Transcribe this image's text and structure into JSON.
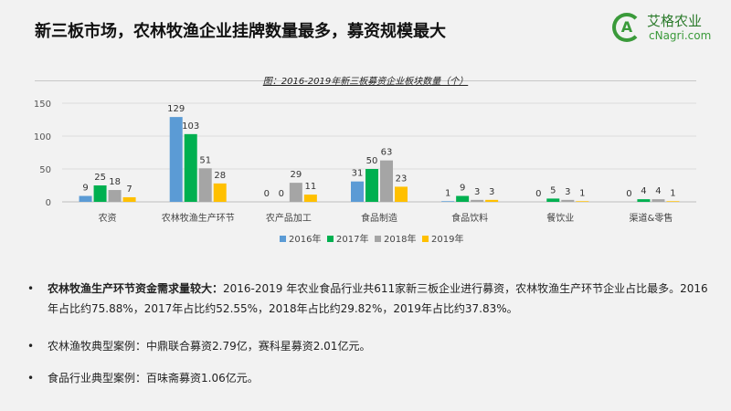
{
  "header": {
    "title": "新三板市场，农林牧渔企业挂牌数量最多，募资规模最大",
    "logo_cn": "艾格农业",
    "logo_en": "cNagri.com"
  },
  "chart_data": {
    "type": "bar",
    "title": "图：2016-2019年新三板募资企业板块数量（个）",
    "categories": [
      "农资",
      "农林牧渔生产环节",
      "农产品加工",
      "食品制造",
      "食品饮料",
      "餐饮业",
      "渠道&零售"
    ],
    "series": [
      {
        "name": "2016年",
        "color": "#5b9bd5",
        "values": [
          9,
          129,
          0,
          31,
          1,
          0,
          0
        ]
      },
      {
        "name": "2017年",
        "color": "#00b050",
        "values": [
          25,
          103,
          0,
          50,
          9,
          5,
          4
        ]
      },
      {
        "name": "2018年",
        "color": "#a5a5a5",
        "values": [
          18,
          51,
          29,
          63,
          3,
          3,
          4
        ]
      },
      {
        "name": "2019年",
        "color": "#ffc000",
        "values": [
          7,
          28,
          11,
          23,
          3,
          1,
          1
        ]
      }
    ],
    "yticks": [
      "0",
      "50",
      "100",
      "150"
    ],
    "ylim": [
      0,
      150
    ],
    "legend": "bottom"
  },
  "bullets": [
    {
      "bold": "农林牧渔生产环节资金需求量较大：",
      "text": "2016-2019 年农业食品行业共611家新三板企业进行募资，农林牧渔生产环节企业占比最多。2016年占比约75.88%，2017年占比约52.55%，2018年占比约29.82%，2019年占比约37.83%。"
    },
    {
      "bold": "",
      "text": "农林渔牧典型案例：中鼎联合募资2.79亿，赛科星募资2.01亿元。"
    },
    {
      "bold": "",
      "text": "食品行业典型案例：百味斋募资1.06亿元。"
    }
  ]
}
